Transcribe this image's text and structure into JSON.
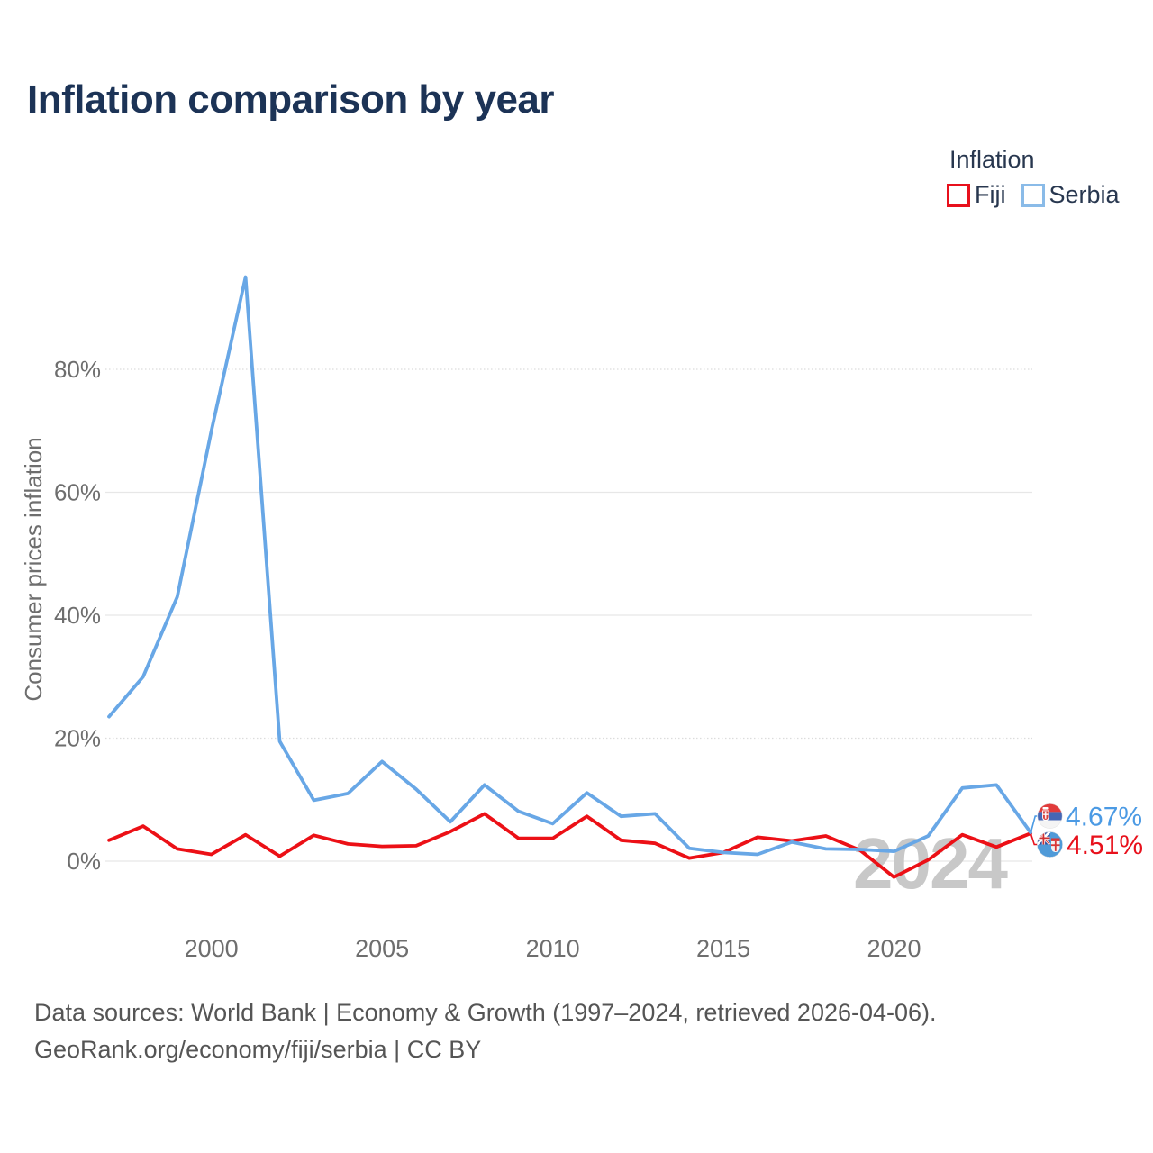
{
  "title": "Inflation comparison by year",
  "legend": {
    "title": "Inflation",
    "items": [
      {
        "label": "Fiji",
        "swatch_color": "#e8101c"
      },
      {
        "label": "Serbia",
        "swatch_color": "#8abbe8"
      }
    ]
  },
  "watermark": "2024",
  "footer": {
    "line1": "Data sources: World Bank | Economy & Growth (1997–2024, retrieved 2026-04-06).",
    "line2": "GeoRank.org/economy/fiji/serbia | CC BY"
  },
  "chart_data": {
    "type": "line",
    "title": "Inflation comparison by year",
    "xlabel": "",
    "ylabel": "Consumer prices inflation",
    "grid": true,
    "legend_position": "top-right",
    "ylim": [
      -5,
      100
    ],
    "xlim": [
      1997,
      2024
    ],
    "yticks": [
      {
        "value": 0,
        "label": "0%"
      },
      {
        "value": 20,
        "label": "20%"
      },
      {
        "value": 40,
        "label": "40%"
      },
      {
        "value": 60,
        "label": "60%"
      },
      {
        "value": 80,
        "label": "80%"
      }
    ],
    "xticks": [
      {
        "value": 2000,
        "label": "2000"
      },
      {
        "value": 2005,
        "label": "2005"
      },
      {
        "value": 2010,
        "label": "2010"
      },
      {
        "value": 2015,
        "label": "2015"
      },
      {
        "value": 2020,
        "label": "2020"
      }
    ],
    "x": [
      1997,
      1998,
      1999,
      2000,
      2001,
      2002,
      2003,
      2004,
      2005,
      2006,
      2007,
      2008,
      2009,
      2010,
      2011,
      2012,
      2013,
      2014,
      2015,
      2016,
      2017,
      2018,
      2019,
      2020,
      2021,
      2022,
      2023,
      2024
    ],
    "series": [
      {
        "name": "Fiji",
        "color": "#ec1016",
        "end_label": "4.51%",
        "end_label_color": "#e8111c",
        "flag_icon": "fiji-flag",
        "values": [
          3.4,
          5.7,
          2.0,
          1.1,
          4.3,
          0.8,
          4.2,
          2.8,
          2.4,
          2.5,
          4.8,
          7.7,
          3.7,
          3.7,
          7.3,
          3.4,
          2.9,
          0.5,
          1.4,
          3.9,
          3.3,
          4.1,
          1.8,
          -2.6,
          0.2,
          4.3,
          2.3,
          4.51
        ]
      },
      {
        "name": "Serbia",
        "color": "#68a7e6",
        "end_label": "4.67%",
        "end_label_color": "#4b9ae4",
        "flag_icon": "serbia-flag",
        "values": [
          23.5,
          30.0,
          43.0,
          70.0,
          95.0,
          19.5,
          9.9,
          11.0,
          16.2,
          11.7,
          6.4,
          12.4,
          8.1,
          6.1,
          11.1,
          7.3,
          7.7,
          2.1,
          1.4,
          1.1,
          3.1,
          2.0,
          1.9,
          1.6,
          4.1,
          11.9,
          12.4,
          4.67
        ]
      }
    ]
  }
}
